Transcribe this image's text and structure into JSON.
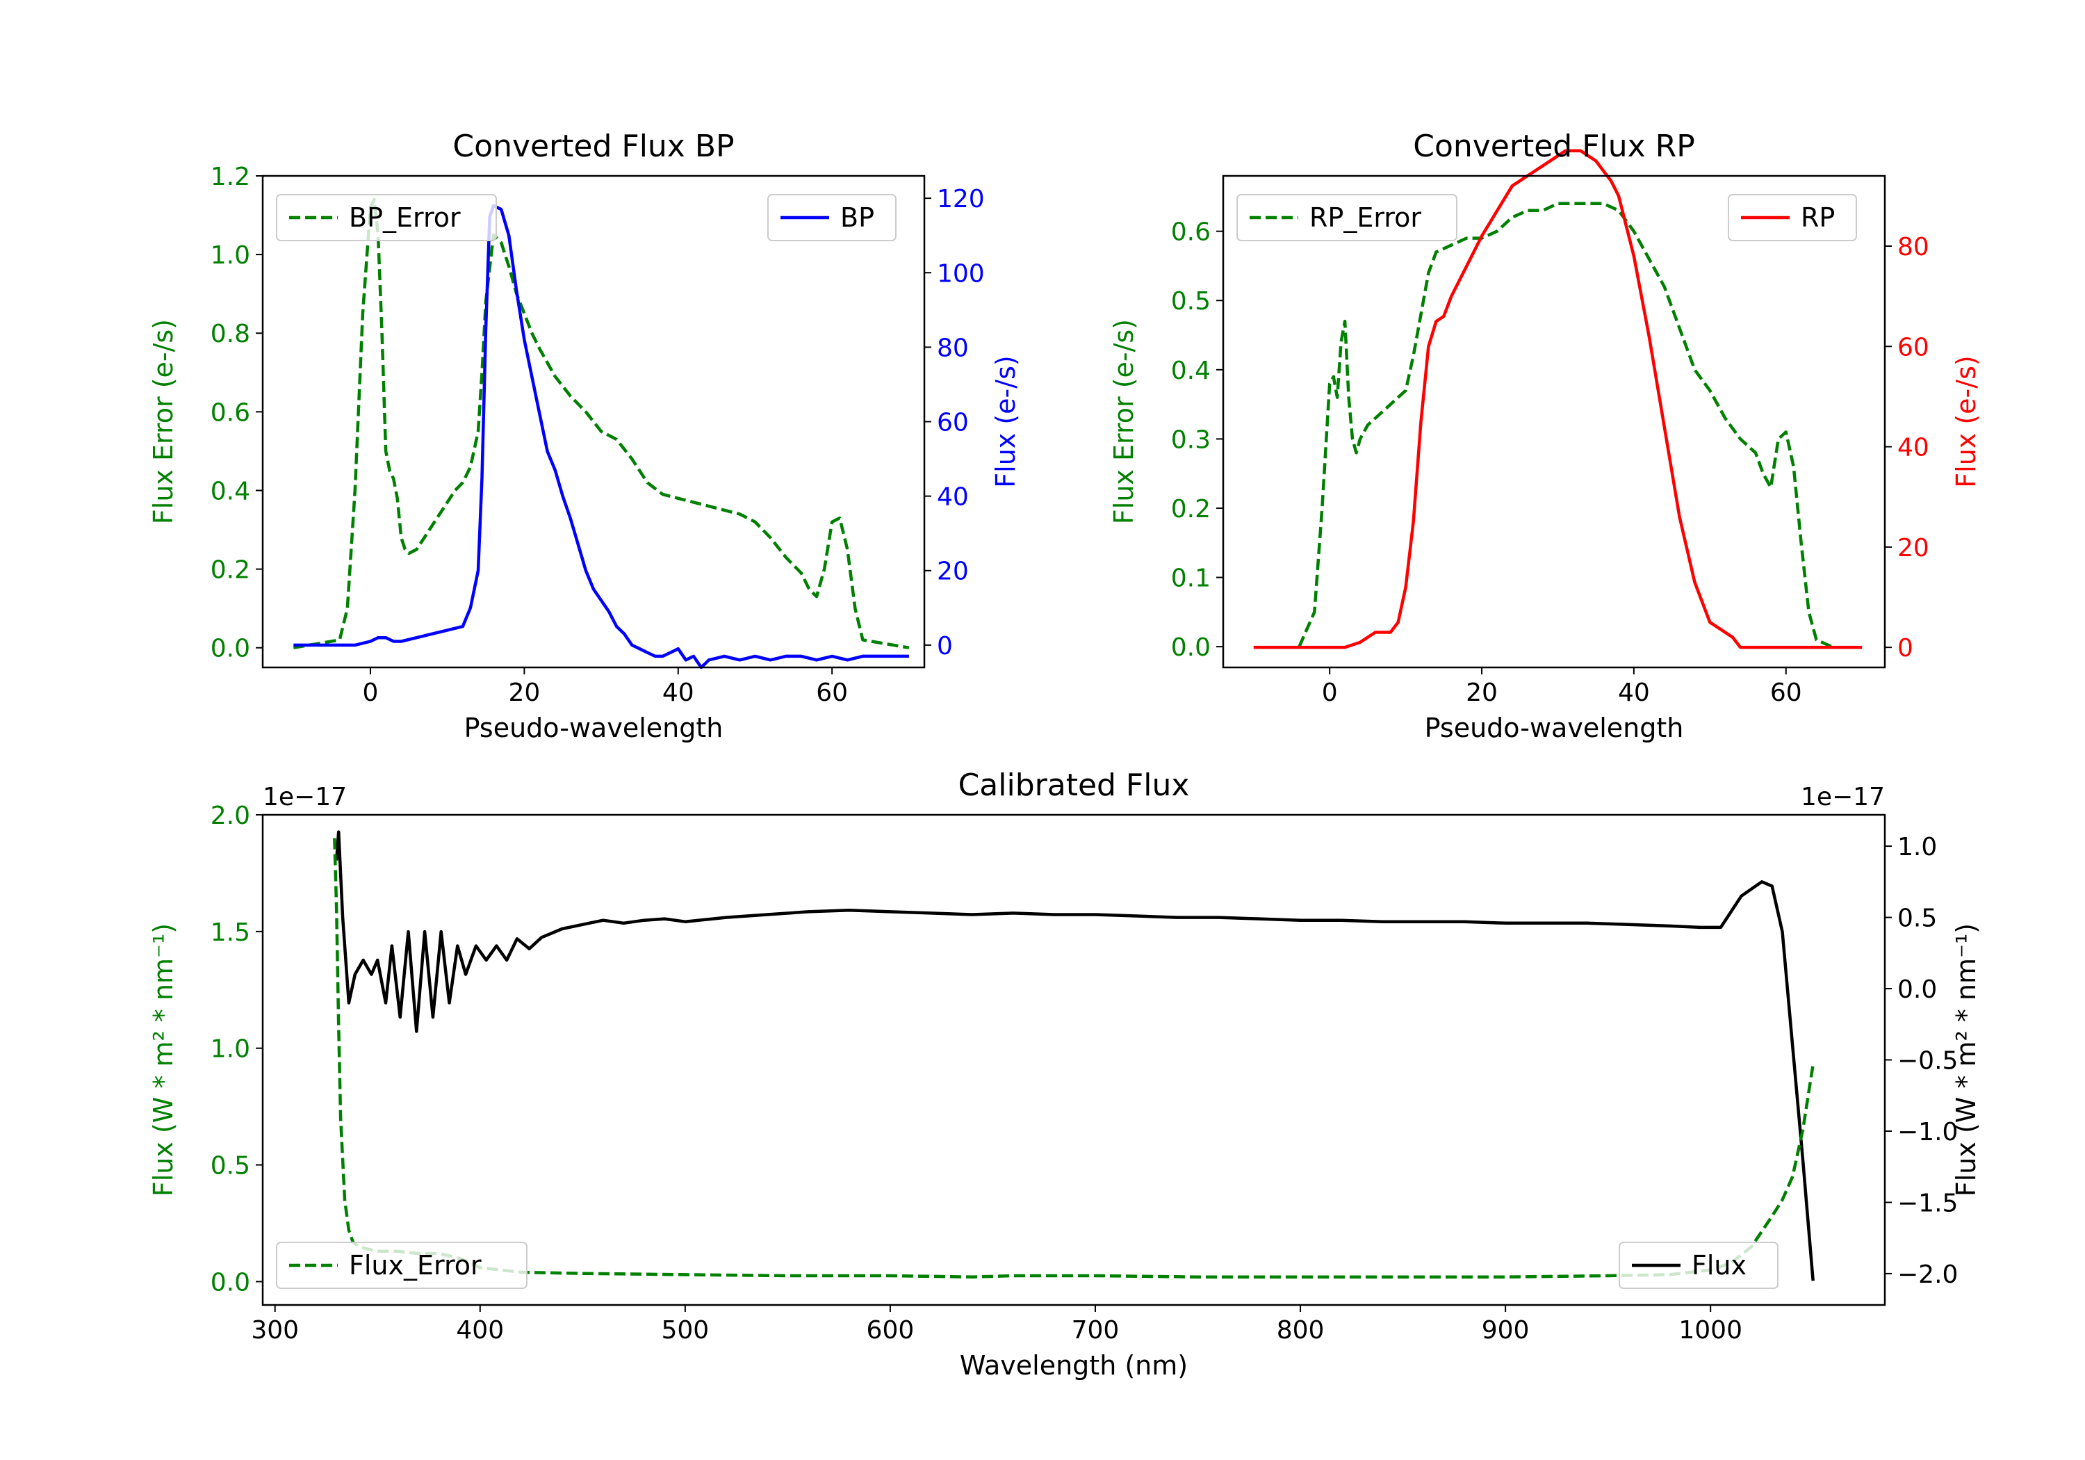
{
  "figure": {
    "type": "line",
    "panel_count": 3
  },
  "colors": {
    "green": "#008000",
    "blue": "#0000ff",
    "red": "#ff0000",
    "black": "#000000"
  },
  "chart_data": [
    {
      "type": "line",
      "title": "Converted Flux BP",
      "xlabel": "Pseudo-wavelength",
      "xlim": [
        -14,
        72
      ],
      "xticks": [
        0,
        20,
        40,
        60
      ],
      "left_axis": {
        "label": "Flux Error (e-/s)",
        "color": "#008000",
        "ylim": [
          -0.05,
          1.2
        ],
        "ticks": [
          "0.0",
          "0.2",
          "0.4",
          "0.6",
          "0.8",
          "1.0",
          "1.2"
        ]
      },
      "right_axis": {
        "label": "Flux (e-/s)",
        "color": "#0000ff",
        "ylim": [
          -6,
          126
        ],
        "ticks": [
          "0",
          "20",
          "40",
          "60",
          "80",
          "100",
          "120"
        ]
      },
      "series": [
        {
          "name": "BP_Error",
          "axis": "left",
          "color": "#008000",
          "style": "dashed",
          "x": [
            -10,
            -4,
            -3,
            -2,
            -1,
            0,
            0.5,
            1,
            1.5,
            2,
            2.5,
            3,
            3.5,
            4,
            4.5,
            5,
            6,
            7,
            8,
            9,
            10,
            11,
            12,
            13,
            14,
            14.5,
            15,
            16,
            17,
            18,
            19,
            20,
            21,
            22,
            24,
            26,
            28,
            30,
            32,
            34,
            36,
            38,
            40,
            42,
            44,
            46,
            48,
            50,
            52,
            54,
            56,
            57,
            58,
            59,
            60,
            61,
            62,
            63,
            64,
            70
          ],
          "y": [
            0.0,
            0.02,
            0.1,
            0.4,
            0.85,
            1.12,
            1.14,
            1.05,
            0.8,
            0.5,
            0.45,
            0.43,
            0.38,
            0.28,
            0.25,
            0.24,
            0.25,
            0.28,
            0.31,
            0.34,
            0.37,
            0.4,
            0.42,
            0.46,
            0.55,
            0.7,
            0.88,
            1.05,
            1.03,
            0.97,
            0.9,
            0.85,
            0.8,
            0.76,
            0.69,
            0.64,
            0.6,
            0.55,
            0.53,
            0.48,
            0.42,
            0.39,
            0.38,
            0.37,
            0.36,
            0.35,
            0.34,
            0.32,
            0.28,
            0.23,
            0.19,
            0.15,
            0.13,
            0.2,
            0.32,
            0.33,
            0.25,
            0.1,
            0.02,
            0.0
          ]
        },
        {
          "name": "BP",
          "axis": "right",
          "color": "#0000ff",
          "style": "solid",
          "x": [
            -10,
            -2,
            0,
            1,
            2,
            3,
            4,
            6,
            8,
            10,
            12,
            13,
            14,
            14.5,
            15,
            15.5,
            16,
            17,
            18,
            19,
            20,
            21,
            22,
            23,
            24,
            25,
            26,
            27,
            28,
            29,
            30,
            31,
            32,
            33,
            34,
            35,
            36,
            37,
            38,
            39,
            40,
            41,
            42,
            43,
            44,
            46,
            48,
            50,
            52,
            54,
            56,
            58,
            60,
            62,
            64,
            66,
            70
          ],
          "y": [
            0,
            0,
            1,
            2,
            2,
            1,
            1,
            2,
            3,
            4,
            5,
            10,
            20,
            45,
            85,
            115,
            118,
            117,
            110,
            95,
            82,
            72,
            62,
            52,
            47,
            40,
            34,
            27,
            20,
            15,
            12,
            9,
            5,
            3,
            0,
            -1,
            -2,
            -3,
            -3,
            -2,
            -1,
            -4,
            -3,
            -6,
            -4,
            -3,
            -4,
            -3,
            -4,
            -3,
            -3,
            -4,
            -3,
            -4,
            -3,
            -3,
            -3
          ]
        }
      ]
    },
    {
      "type": "line",
      "title": "Converted Flux RP",
      "xlabel": "Pseudo-wavelength",
      "xlim": [
        -14,
        73
      ],
      "xticks": [
        0,
        20,
        40,
        60
      ],
      "left_axis": {
        "label": "Flux Error (e-/s)",
        "color": "#008000",
        "ylim": [
          -0.03,
          0.68
        ],
        "ticks": [
          "0.0",
          "0.1",
          "0.2",
          "0.3",
          "0.4",
          "0.5",
          "0.6"
        ]
      },
      "right_axis": {
        "label": "Flux (e-/s)",
        "color": "#ff0000",
        "ylim": [
          -4,
          94
        ],
        "ticks": [
          "0",
          "20",
          "40",
          "60",
          "80"
        ]
      },
      "series": [
        {
          "name": "RP_Error",
          "axis": "left",
          "color": "#008000",
          "style": "dashed",
          "x": [
            -4,
            -2,
            -1,
            0,
            0.5,
            1,
            1.5,
            2,
            2.5,
            3,
            3.5,
            4,
            5,
            6,
            7,
            8,
            9,
            10,
            11,
            12,
            13,
            14,
            16,
            18,
            20,
            22,
            24,
            26,
            28,
            30,
            32,
            34,
            36,
            38,
            40,
            42,
            44,
            46,
            48,
            50,
            52,
            54,
            56,
            57,
            58,
            59,
            60,
            61,
            62,
            63,
            64,
            66
          ],
          "y": [
            0.0,
            0.05,
            0.2,
            0.38,
            0.39,
            0.36,
            0.44,
            0.47,
            0.36,
            0.3,
            0.28,
            0.3,
            0.32,
            0.33,
            0.34,
            0.35,
            0.36,
            0.37,
            0.42,
            0.48,
            0.54,
            0.57,
            0.58,
            0.59,
            0.59,
            0.6,
            0.62,
            0.63,
            0.63,
            0.64,
            0.64,
            0.64,
            0.64,
            0.63,
            0.6,
            0.56,
            0.52,
            0.46,
            0.4,
            0.37,
            0.33,
            0.3,
            0.28,
            0.25,
            0.23,
            0.3,
            0.31,
            0.26,
            0.15,
            0.05,
            0.01,
            0.0
          ]
        },
        {
          "name": "RP",
          "axis": "right",
          "color": "#ff0000",
          "style": "solid",
          "x": [
            -10,
            0,
            2,
            4,
            6,
            8,
            9,
            10,
            11,
            12,
            13,
            14,
            15,
            16,
            18,
            20,
            22,
            24,
            26,
            28,
            29,
            30,
            31,
            32,
            33,
            34,
            35,
            36,
            37,
            38,
            40,
            42,
            44,
            46,
            48,
            50,
            51,
            52,
            53,
            54,
            56,
            58,
            60,
            62,
            70
          ],
          "y": [
            0,
            0,
            0,
            1,
            3,
            3,
            5,
            12,
            25,
            45,
            60,
            65,
            66,
            70,
            76,
            82,
            87,
            92,
            94,
            96,
            97,
            98,
            99,
            99,
            99,
            98,
            97,
            95,
            93,
            90,
            78,
            62,
            44,
            26,
            13,
            5,
            4,
            3,
            2,
            0,
            0,
            0,
            0,
            0,
            0
          ]
        }
      ]
    },
    {
      "type": "line",
      "title": "Calibrated Flux",
      "xlabel": "Wavelength (nm)",
      "xlim": [
        294,
        1085
      ],
      "xticks": [
        300,
        400,
        500,
        600,
        700,
        800,
        900,
        1000
      ],
      "left_axis": {
        "label": "Flux (W * m² * nm⁻¹)",
        "color": "#008000",
        "ylim": [
          -0.1,
          2.0
        ],
        "ticks": [
          "0.0",
          "0.5",
          "1.0",
          "1.5",
          "2.0"
        ],
        "offset_text": "1e−17"
      },
      "right_axis": {
        "label": "Flux (W * m² * nm⁻¹)",
        "color": "#000000",
        "ylim": [
          -2.22,
          1.22
        ],
        "ticks": [
          "−2.0",
          "−1.5",
          "−1.0",
          "−0.5",
          "0.0",
          "0.5",
          "1.0"
        ],
        "offset_text": "1e−17"
      },
      "series": [
        {
          "name": "Flux",
          "axis": "right",
          "color": "#000000",
          "style": "solid",
          "x": [
            330,
            331,
            333,
            336,
            339,
            343,
            347,
            350,
            354,
            357,
            361,
            365,
            369,
            373,
            377,
            381,
            385,
            389,
            393,
            398,
            403,
            408,
            413,
            418,
            424,
            430,
            440,
            450,
            460,
            470,
            480,
            490,
            500,
            520,
            540,
            560,
            580,
            600,
            620,
            640,
            660,
            680,
            700,
            720,
            740,
            760,
            780,
            800,
            820,
            840,
            860,
            880,
            900,
            920,
            940,
            960,
            980,
            995,
            1005,
            1015,
            1025,
            1030,
            1035,
            1040,
            1045,
            1050
          ],
          "y": [
            0.9,
            1.1,
            0.5,
            -0.1,
            0.1,
            0.2,
            0.1,
            0.2,
            -0.1,
            0.3,
            -0.2,
            0.4,
            -0.3,
            0.4,
            -0.2,
            0.4,
            -0.1,
            0.3,
            0.1,
            0.3,
            0.2,
            0.3,
            0.2,
            0.35,
            0.28,
            0.36,
            0.42,
            0.45,
            0.48,
            0.46,
            0.48,
            0.49,
            0.47,
            0.5,
            0.52,
            0.54,
            0.55,
            0.54,
            0.53,
            0.52,
            0.53,
            0.52,
            0.52,
            0.51,
            0.5,
            0.5,
            0.49,
            0.48,
            0.48,
            0.47,
            0.47,
            0.47,
            0.46,
            0.46,
            0.46,
            0.45,
            0.44,
            0.43,
            0.43,
            0.65,
            0.75,
            0.72,
            0.4,
            -0.4,
            -1.2,
            -2.05
          ]
        },
        {
          "name": "Flux_Error",
          "axis": "left",
          "color": "#008000",
          "style": "dashed",
          "x": [
            329,
            330,
            331,
            332,
            334,
            336,
            338,
            341,
            345,
            350,
            360,
            370,
            380,
            390,
            400,
            420,
            450,
            500,
            550,
            600,
            640,
            660,
            700,
            750,
            800,
            850,
            900,
            950,
            980,
            1000,
            1010,
            1020,
            1030,
            1035,
            1040,
            1045,
            1050
          ],
          "y": [
            1.9,
            1.6,
            1.1,
            0.7,
            0.35,
            0.22,
            0.17,
            0.15,
            0.14,
            0.13,
            0.13,
            0.12,
            0.12,
            0.1,
            0.06,
            0.04,
            0.035,
            0.03,
            0.025,
            0.025,
            0.02,
            0.025,
            0.025,
            0.02,
            0.02,
            0.02,
            0.02,
            0.025,
            0.03,
            0.05,
            0.08,
            0.15,
            0.28,
            0.35,
            0.45,
            0.65,
            0.93
          ]
        }
      ]
    }
  ]
}
